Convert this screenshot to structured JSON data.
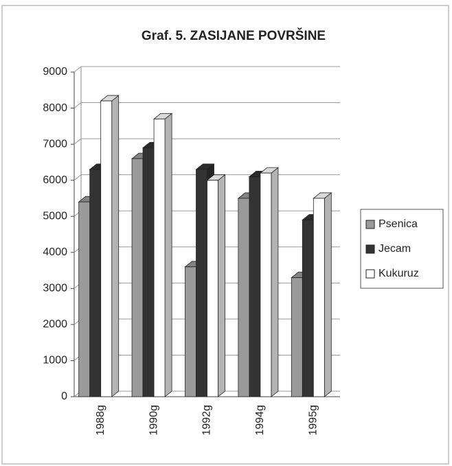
{
  "chart_data": {
    "type": "bar3d",
    "title": "Graf. 5. ZASIJANE POVRŠINE",
    "categories": [
      "1988g",
      "1990g",
      "1992g",
      "1994g",
      "1995g"
    ],
    "series": [
      {
        "name": "Psenica",
        "color": "#9a9a9a",
        "values": [
          5400,
          6600,
          3600,
          5500,
          3300
        ]
      },
      {
        "name": "Jecam",
        "color": "#333333",
        "values": [
          6300,
          6900,
          6300,
          6100,
          4900
        ]
      },
      {
        "name": "Kukuruz",
        "color": "#ffffff",
        "values": [
          8200,
          7700,
          6000,
          6200,
          5500
        ]
      }
    ],
    "ylim": [
      0,
      9000
    ],
    "yticks": [
      0,
      1000,
      2000,
      3000,
      4000,
      5000,
      6000,
      7000,
      8000,
      9000
    ],
    "grid": true,
    "legend": "right"
  }
}
